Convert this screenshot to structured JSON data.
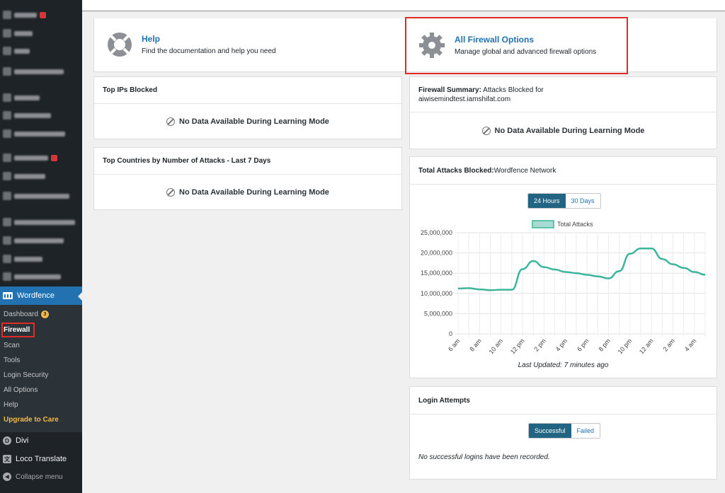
{
  "sidebar": {
    "wordfence_label": "Wordfence",
    "submenu": [
      {
        "label": "Dashboard",
        "badge": "3"
      },
      {
        "label": "Firewall"
      },
      {
        "label": "Scan"
      },
      {
        "label": "Tools"
      },
      {
        "label": "Login Security"
      },
      {
        "label": "All Options"
      },
      {
        "label": "Help"
      },
      {
        "label": "Upgrade to Care"
      }
    ],
    "bottom": [
      {
        "label": "Divi",
        "icon": "D"
      },
      {
        "label": "Loco Translate",
        "icon": "文"
      },
      {
        "label": "Collapse menu",
        "icon": "◀"
      }
    ]
  },
  "help_card": {
    "title": "Help",
    "description": "Find the documentation and help you need"
  },
  "options_card": {
    "title": "All Firewall Options",
    "description": "Manage global and advanced firewall options"
  },
  "top_ips": {
    "title": "Top IPs Blocked",
    "empty": "No Data Available During Learning Mode"
  },
  "top_countries": {
    "title": "Top Countries by Number of Attacks - Last 7 Days",
    "empty": "No Data Available During Learning Mode"
  },
  "firewall_summary": {
    "title_bold": "Firewall Summary:",
    "title_rest": " Attacks Blocked for",
    "domain": "aiwisemindtest.iamshifat.com",
    "empty": "No Data Available During Learning Mode"
  },
  "total_attacks": {
    "title_bold": "Total Attacks Blocked:",
    "title_rest": " Wordfence Network",
    "tabs": [
      "24 Hours",
      "30 Days"
    ],
    "active_tab": "24 Hours",
    "last_updated": "Last Updated: 7 minutes ago"
  },
  "login_attempts": {
    "title": "Login Attempts",
    "tabs": [
      "Successful",
      "Failed"
    ],
    "active_tab": "Successful",
    "empty": "No successful logins have been recorded."
  },
  "colors": {
    "accent": "#2271b1",
    "series": "#3bb59c",
    "highlight": "#e02b27",
    "toggle_active": "#226582"
  },
  "chart_data": {
    "type": "line",
    "series": [
      {
        "name": "Total Attacks",
        "values": [
          11200000,
          11300000,
          11000000,
          10800000,
          10900000,
          10900000,
          16000000,
          18000000,
          16500000,
          15900000,
          15300000,
          15000000,
          14600000,
          14200000,
          13700000,
          15500000,
          19800000,
          21100000,
          21100000,
          18500000,
          17200000,
          16300000,
          15300000,
          14600000
        ]
      }
    ],
    "tick_labels": [
      "6 am",
      "8 am",
      "10 am",
      "12 pm",
      "2 pm",
      "4 pm",
      "6 pm",
      "8 pm",
      "10 pm",
      "12 am",
      "2 am",
      "4 am"
    ],
    "y_ticks": [
      "25,000,000",
      "20,000,000",
      "15,000,000",
      "10,000,000",
      "5,000,000",
      "0"
    ],
    "ylim": [
      0,
      25000000
    ],
    "legend": "top-center",
    "grid": true
  }
}
